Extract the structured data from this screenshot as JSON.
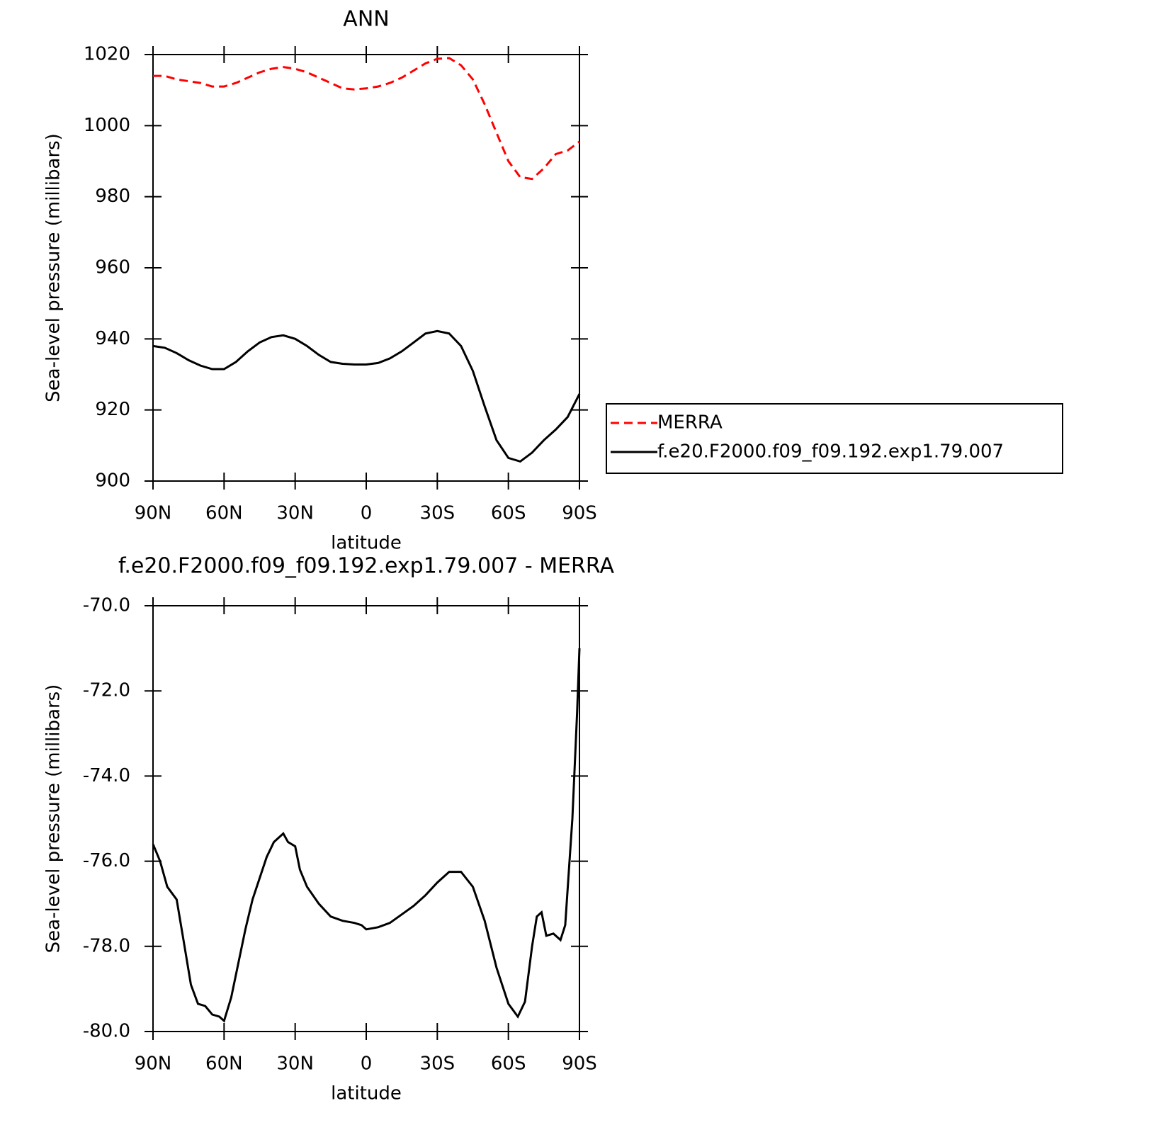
{
  "chart_data": [
    {
      "type": "line",
      "title": "ANN",
      "xlabel": "latitude",
      "ylabel": "Sea-level pressure (millibars)",
      "x": [
        90,
        85,
        80,
        75,
        70,
        65,
        60,
        55,
        50,
        45,
        40,
        35,
        30,
        25,
        20,
        15,
        10,
        5,
        0,
        -5,
        -10,
        -15,
        -20,
        -25,
        -30,
        -35,
        -40,
        -45,
        -50,
        -55,
        -60,
        -65,
        -70,
        -75,
        -80,
        -85,
        -90
      ],
      "series": [
        {
          "name": "MERRA",
          "color": "#ff0000",
          "line_style": "dashed",
          "values": [
            1014,
            1014,
            1013,
            1012.5,
            1012,
            1011,
            1011,
            1012,
            1013.5,
            1015,
            1016,
            1016.5,
            1016,
            1015,
            1013.5,
            1012,
            1010.5,
            1010.2,
            1010.5,
            1011,
            1012,
            1013.5,
            1015.5,
            1017.5,
            1018.8,
            1019,
            1017,
            1013,
            1006,
            998,
            990,
            985.5,
            985,
            988,
            992,
            993,
            995.5
          ]
        },
        {
          "name": "f.e20.F2000.f09_f09.192.exp1.79.007",
          "color": "#000000",
          "line_style": "solid",
          "values": [
            938,
            937.5,
            936,
            934,
            932.5,
            931.5,
            931.5,
            933.5,
            936.5,
            939,
            940.5,
            941,
            940,
            938,
            935.5,
            933.5,
            933,
            932.8,
            932.8,
            933.2,
            934.5,
            936.5,
            939,
            941.5,
            942.2,
            941.5,
            938,
            931,
            921,
            911.5,
            906.5,
            905.5,
            908,
            911.5,
            914.5,
            918,
            924.5
          ]
        }
      ],
      "legend": "right",
      "xlim": [
        90,
        -90
      ],
      "xticks": [
        {
          "value": 90,
          "label": "90N"
        },
        {
          "value": 60,
          "label": "60N"
        },
        {
          "value": 30,
          "label": "30N"
        },
        0,
        {
          "value": -30,
          "label": "30S"
        },
        {
          "value": -60,
          "label": "60S"
        },
        {
          "value": -90,
          "label": "90S"
        }
      ],
      "ylim": [
        900,
        1020
      ],
      "yticks": [
        900,
        920,
        940,
        960,
        980,
        1000,
        1020
      ]
    },
    {
      "type": "line",
      "title": "f.e20.F2000.f09_f09.192.exp1.79.007 - MERRA",
      "xlabel": "latitude",
      "ylabel": "Sea-level pressure (millibars)",
      "x": [
        90,
        87,
        84,
        80,
        77,
        74,
        71,
        68,
        65,
        62,
        60,
        57,
        54,
        51,
        48,
        45,
        42,
        39,
        35,
        33,
        30,
        28,
        25,
        20,
        15,
        10,
        5,
        2,
        0,
        -5,
        -10,
        -15,
        -20,
        -25,
        -30,
        -35,
        -40,
        -45,
        -50,
        -55,
        -60,
        -64,
        -67,
        -70,
        -72,
        -74,
        -76,
        -79,
        -82,
        -84,
        -87,
        -89,
        -90
      ],
      "series": [
        {
          "color": "#000000",
          "line_style": "solid",
          "values": [
            -75.6,
            -76.0,
            -76.6,
            -76.9,
            -77.9,
            -78.9,
            -79.35,
            -79.4,
            -79.6,
            -79.65,
            -79.75,
            -79.2,
            -78.4,
            -77.6,
            -76.9,
            -76.4,
            -75.9,
            -75.55,
            -75.35,
            -75.55,
            -75.65,
            -76.2,
            -76.6,
            -77.0,
            -77.3,
            -77.4,
            -77.45,
            -77.5,
            -77.6,
            -77.55,
            -77.45,
            -77.25,
            -77.05,
            -76.8,
            -76.5,
            -76.25,
            -76.25,
            -76.6,
            -77.4,
            -78.5,
            -79.35,
            -79.65,
            -79.3,
            -78.0,
            -77.3,
            -77.2,
            -77.75,
            -77.7,
            -77.85,
            -77.5,
            -75.0,
            -72.5,
            -71.0
          ]
        }
      ],
      "xlim": [
        90,
        -90
      ],
      "xticks": [
        {
          "value": 90,
          "label": "90N"
        },
        {
          "value": 60,
          "label": "60N"
        },
        {
          "value": 30,
          "label": "30N"
        },
        0,
        {
          "value": -30,
          "label": "30S"
        },
        {
          "value": -60,
          "label": "60S"
        },
        {
          "value": -90,
          "label": "90S"
        }
      ],
      "ylim": [
        -80,
        -70
      ],
      "yticks": [
        {
          "value": -80,
          "label": "-80.0"
        },
        {
          "value": -78,
          "label": "-78.0"
        },
        {
          "value": -76,
          "label": "-76.0"
        },
        {
          "value": -74,
          "label": "-74.0"
        },
        {
          "value": -72,
          "label": "-72.0"
        },
        {
          "value": -70,
          "label": "-70.0"
        }
      ]
    }
  ]
}
